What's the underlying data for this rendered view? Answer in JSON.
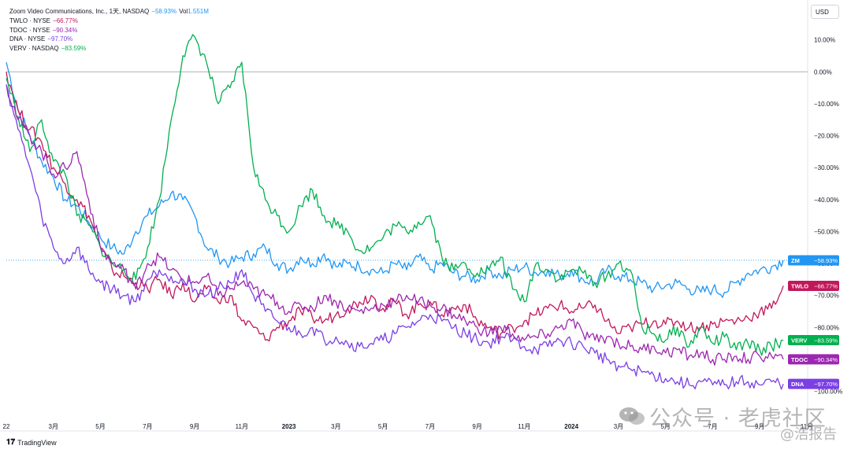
{
  "legend": {
    "main_name": "Zoom Video Communications, Inc., 1天, NASDAQ",
    "main_change": "−58.93%",
    "vol_label": "Vol",
    "vol_value": "1.551M",
    "items": [
      {
        "name": "TWLO · NYSE",
        "change": "−66.77%",
        "color": "#c2185b"
      },
      {
        "name": "TDOC · NYSE",
        "change": "−90.34%",
        "color": "#9c27b0"
      },
      {
        "name": "DNA · NYSE",
        "change": "−97.70%",
        "color": "#7b3fe4"
      },
      {
        "name": "VERV · NASDAQ",
        "change": "−83.59%",
        "color": "#00b04f"
      }
    ]
  },
  "currency_button": "USD",
  "brand": "TradingView",
  "watermark": {
    "line1": "公众号 · 老虎社区",
    "line2": "@浩报告"
  },
  "chart_data": {
    "type": "line",
    "x_ticks": [
      "22",
      "3月",
      "5月",
      "7月",
      "9月",
      "11月",
      "2023",
      "3月",
      "5月",
      "7月",
      "9月",
      "11月",
      "2024",
      "3月",
      "5月",
      "7月",
      "9月",
      "11月"
    ],
    "y_ticks": [
      "20.00%",
      "10.00%",
      "0.00%",
      "−10.00%",
      "−20.00%",
      "−30.00%",
      "−40.00%",
      "−50.00%",
      "−60.00%",
      "−70.00%",
      "−80.00%",
      "−90.00%",
      "−100.00%"
    ],
    "y_tick_values": [
      20,
      10,
      0,
      -10,
      -20,
      -30,
      -40,
      -50,
      -60,
      -70,
      -80,
      -90,
      -100
    ],
    "ylim": [
      -108,
      20
    ],
    "xlim": [
      0,
      34
    ],
    "x_tick_positions": [
      0,
      2,
      4,
      6,
      8,
      10,
      12,
      14,
      16,
      18,
      20,
      22,
      24,
      26,
      28,
      30,
      32,
      34
    ],
    "zero_line": 0,
    "series": [
      {
        "name": "ZM",
        "label": "ZM",
        "final": "−58.93%",
        "color": "#2196f3",
        "x": [
          0,
          0.5,
          1,
          1.5,
          2,
          2.5,
          3,
          3.5,
          4,
          4.5,
          5,
          5.5,
          6,
          6.5,
          7,
          7.5,
          8,
          8.5,
          9,
          9.5,
          10,
          10.5,
          11,
          11.5,
          12,
          12.5,
          13,
          13.5,
          14,
          14.5,
          15,
          15.5,
          16,
          16.5,
          17,
          17.5,
          18,
          18.5,
          19,
          19.5,
          20,
          20.5,
          21,
          21.5,
          22,
          22.5,
          23,
          23.5,
          24,
          24.5,
          25,
          25.5,
          26,
          26.5,
          27,
          27.5,
          28,
          28.5,
          29,
          29.5,
          30,
          30.5,
          31,
          31.5,
          32,
          32.5,
          33
        ],
        "y": [
          3,
          -12,
          -20,
          -28,
          -33,
          -40,
          -42,
          -47,
          -52,
          -55,
          -57,
          -50,
          -45,
          -42,
          -38,
          -40,
          -45,
          -55,
          -58,
          -60,
          -58,
          -57,
          -55,
          -60,
          -62,
          -58,
          -60,
          -57,
          -61,
          -60,
          -61,
          -62,
          -63,
          -60,
          -62,
          -58,
          -62,
          -60,
          -63,
          -64,
          -65,
          -62,
          -64,
          -62,
          -61,
          -63,
          -62,
          -64,
          -62,
          -65,
          -66,
          -62,
          -64,
          -65,
          -66,
          -68,
          -67,
          -66,
          -68,
          -69,
          -68,
          -69,
          -66,
          -63,
          -62,
          -61,
          -59
        ]
      },
      {
        "name": "TWLO",
        "label": "TWLO",
        "final": "−66.77%",
        "color": "#c2185b",
        "x": [
          0,
          0.5,
          1,
          1.5,
          2,
          2.5,
          3,
          3.5,
          4,
          4.5,
          5,
          5.5,
          6,
          6.5,
          7,
          7.5,
          8,
          8.5,
          9,
          9.5,
          10,
          10.5,
          11,
          11.5,
          12,
          12.5,
          13,
          13.5,
          14,
          14.5,
          15,
          15.5,
          16,
          16.5,
          17,
          17.5,
          18,
          18.5,
          19,
          19.5,
          20,
          20.5,
          21,
          21.5,
          22,
          22.5,
          23,
          23.5,
          24,
          24.5,
          25,
          25.5,
          26,
          26.5,
          27,
          27.5,
          28,
          28.5,
          29,
          29.5,
          30,
          30.5,
          31,
          31.5,
          32,
          32.5,
          33
        ],
        "y": [
          0,
          -12,
          -18,
          -22,
          -30,
          -35,
          -40,
          -45,
          -55,
          -62,
          -64,
          -66,
          -68,
          -65,
          -70,
          -66,
          -72,
          -68,
          -72,
          -70,
          -78,
          -80,
          -84,
          -80,
          -78,
          -75,
          -77,
          -78,
          -76,
          -74,
          -72,
          -70,
          -74,
          -72,
          -76,
          -73,
          -72,
          -76,
          -74,
          -73,
          -78,
          -80,
          -82,
          -80,
          -78,
          -76,
          -74,
          -73,
          -75,
          -74,
          -73,
          -78,
          -82,
          -80,
          -79,
          -78,
          -79,
          -78,
          -80,
          -80,
          -79,
          -78,
          -78,
          -77,
          -75,
          -74,
          -67
        ]
      },
      {
        "name": "VERV",
        "label": "VERV",
        "final": "−83.59%",
        "color": "#00b04f",
        "x": [
          0,
          0.5,
          1,
          1.5,
          2,
          2.5,
          3,
          3.5,
          4,
          4.5,
          5,
          5.5,
          6,
          6.5,
          7,
          7.5,
          8,
          8.5,
          9,
          9.5,
          10,
          10.5,
          11,
          11.5,
          12,
          12.5,
          13,
          13.5,
          14,
          14.5,
          15,
          15.5,
          16,
          16.5,
          17,
          17.5,
          18,
          18.5,
          19,
          19.5,
          20,
          20.5,
          21,
          21.5,
          22,
          22.5,
          23,
          23.5,
          24,
          24.5,
          25,
          25.5,
          26,
          26.5,
          27,
          27.5,
          28,
          28.5,
          29,
          29.5,
          30,
          30.5,
          31,
          31.5,
          32,
          32.5,
          33
        ],
        "y": [
          -2,
          -14,
          -25,
          -15,
          -28,
          -32,
          -45,
          -48,
          -55,
          -60,
          -62,
          -65,
          -55,
          -40,
          -15,
          5,
          11,
          3,
          -10,
          -5,
          3,
          -30,
          -40,
          -45,
          -50,
          -42,
          -37,
          -45,
          -48,
          -50,
          -56,
          -55,
          -52,
          -48,
          -50,
          -47,
          -45,
          -58,
          -62,
          -60,
          -63,
          -62,
          -58,
          -68,
          -72,
          -60,
          -62,
          -65,
          -62,
          -63,
          -66,
          -64,
          -60,
          -62,
          -80,
          -82,
          -84,
          -80,
          -86,
          -80,
          -85,
          -83,
          -87,
          -85,
          -87,
          -86,
          -84
        ]
      },
      {
        "name": "TDOC",
        "label": "TDOC",
        "final": "−90.34%",
        "color": "#9c27b0",
        "x": [
          0,
          0.5,
          1,
          1.5,
          2,
          2.5,
          3,
          3.5,
          4,
          4.5,
          5,
          5.5,
          6,
          6.5,
          7,
          7.5,
          8,
          8.5,
          9,
          9.5,
          10,
          10.5,
          11,
          11.5,
          12,
          12.5,
          13,
          13.5,
          14,
          14.5,
          15,
          15.5,
          16,
          16.5,
          17,
          17.5,
          18,
          18.5,
          19,
          19.5,
          20,
          20.5,
          21,
          21.5,
          22,
          22.5,
          23,
          23.5,
          24,
          24.5,
          25,
          25.5,
          26,
          26.5,
          27,
          27.5,
          28,
          28.5,
          29,
          29.5,
          30,
          30.5,
          31,
          31.5,
          32,
          32.5,
          33
        ],
        "y": [
          -4,
          -15,
          -20,
          -25,
          -32,
          -30,
          -25,
          -40,
          -55,
          -60,
          -62,
          -68,
          -60,
          -58,
          -62,
          -65,
          -66,
          -64,
          -70,
          -68,
          -66,
          -68,
          -70,
          -72,
          -75,
          -73,
          -74,
          -70,
          -72,
          -74,
          -75,
          -74,
          -73,
          -72,
          -70,
          -72,
          -73,
          -74,
          -76,
          -78,
          -80,
          -82,
          -80,
          -82,
          -84,
          -83,
          -82,
          -80,
          -78,
          -82,
          -84,
          -83,
          -85,
          -86,
          -87,
          -86,
          -88,
          -87,
          -89,
          -88,
          -90,
          -90,
          -89,
          -90,
          -89,
          -89,
          -90
        ]
      },
      {
        "name": "DNA",
        "label": "DNA",
        "final": "−97.70%",
        "color": "#7b3fe4",
        "x": [
          0,
          0.5,
          1,
          1.5,
          2,
          2.5,
          3,
          3.5,
          4,
          4.5,
          5,
          5.5,
          6,
          6.5,
          7,
          7.5,
          8,
          8.5,
          9,
          9.5,
          10,
          10.5,
          11,
          11.5,
          12,
          12.5,
          13,
          13.5,
          14,
          14.5,
          15,
          15.5,
          16,
          16.5,
          17,
          17.5,
          18,
          18.5,
          19,
          19.5,
          20,
          20.5,
          21,
          21.5,
          22,
          22.5,
          23,
          23.5,
          24,
          24.5,
          25,
          25.5,
          26,
          26.5,
          27,
          27.5,
          28,
          28.5,
          29,
          29.5,
          30,
          30.5,
          31,
          31.5,
          32,
          32.5,
          33
        ],
        "y": [
          -4,
          -18,
          -30,
          -45,
          -55,
          -60,
          -55,
          -62,
          -66,
          -68,
          -70,
          -72,
          -65,
          -62,
          -64,
          -66,
          -68,
          -70,
          -68,
          -66,
          -62,
          -70,
          -75,
          -78,
          -80,
          -82,
          -80,
          -84,
          -83,
          -85,
          -86,
          -85,
          -84,
          -82,
          -80,
          -78,
          -76,
          -78,
          -80,
          -82,
          -84,
          -85,
          -83,
          -84,
          -86,
          -87,
          -86,
          -84,
          -85,
          -86,
          -88,
          -90,
          -92,
          -93,
          -94,
          -95,
          -96,
          -97,
          -98,
          -97,
          -98,
          -98,
          -97,
          -97,
          -98,
          -97,
          -97.7
        ]
      }
    ]
  }
}
